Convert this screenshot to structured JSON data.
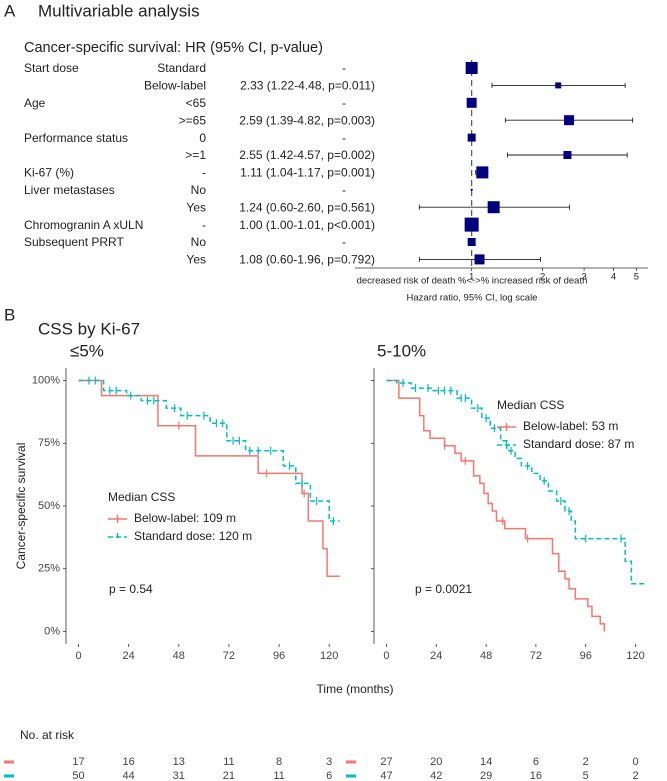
{
  "chart_data": [
    {
      "type": "forest",
      "panel_label": "A",
      "title": "Multivariable analysis",
      "subtitle": "Cancer-specific survival: HR (95% CI, p-value)",
      "rows": [
        {
          "variable": "Start dose",
          "level": "Standard",
          "estimate": "-",
          "hr": 1,
          "size": 6
        },
        {
          "level": "Below-label",
          "estimate": "2.33 (1.22-4.48, p=0.011)",
          "hr": 2.33,
          "lower": 1.22,
          "upper": 4.48,
          "size": 3
        },
        {
          "variable": "Age",
          "level": "<65",
          "estimate": "-",
          "hr": 1,
          "size": 5
        },
        {
          "level": ">=65",
          "estimate": "2.59 (1.39-4.82, p=0.003)",
          "hr": 2.59,
          "lower": 1.39,
          "upper": 4.82,
          "size": 5
        },
        {
          "variable": "Performance status",
          "level": "0",
          "estimate": "-",
          "hr": 1,
          "size": 4
        },
        {
          "level": ">=1",
          "estimate": "2.55 (1.42-4.57, p=0.002)",
          "hr": 2.55,
          "lower": 1.42,
          "upper": 4.57,
          "size": 4
        },
        {
          "variable": "Ki-67 (%)",
          "level": "-",
          "estimate": "1.11 (1.04-1.17, p=0.001)",
          "hr": 1.11,
          "lower": 1.04,
          "upper": 1.17,
          "size": 6
        },
        {
          "variable": "Liver metastases",
          "level": "No",
          "estimate": "-",
          "hr": 1,
          "size": 1
        },
        {
          "level": "Yes",
          "estimate": "1.24 (0.60-2.60, p=0.561)",
          "hr": 1.24,
          "lower": 0.6,
          "upper": 2.6,
          "size": 6
        },
        {
          "variable": "Chromogranin A xULN",
          "level": "-",
          "estimate": "1.00 (1.00-1.01, p<0.001)",
          "hr": 1.0,
          "lower": 1.0,
          "upper": 1.01,
          "size": 7
        },
        {
          "variable": "Subsequent PRRT",
          "level": "No",
          "estimate": "-",
          "hr": 1,
          "size": 4
        },
        {
          "level": "Yes",
          "estimate": "1.08 (0.60-1.96, p=0.792)",
          "hr": 1.08,
          "lower": 0.6,
          "upper": 1.96,
          "size": 5
        }
      ],
      "xlim": [
        0.32,
        5.6
      ],
      "xticks": [
        1,
        2,
        3,
        4,
        5
      ],
      "log_scale": true,
      "reference_line": 1,
      "color": "#00007f",
      "annotation": "decreased risk of death %<->% increased risk of death",
      "xlabel": "Hazard ratio, 95% CI, log scale"
    },
    {
      "type": "km",
      "title": "≤5%",
      "xlim": [
        -6,
        129
      ],
      "xticks": [
        0,
        24,
        48,
        72,
        96,
        120
      ],
      "ylim": [
        -5,
        105
      ],
      "yticks": [
        {
          "value": 0,
          "label": "0%"
        },
        {
          "value": 25,
          "label": "25%"
        },
        {
          "value": 50,
          "label": "50%"
        },
        {
          "value": 75,
          "label": "75%"
        },
        {
          "value": 100,
          "label": "100%"
        }
      ],
      "legend_title": "Median CSS",
      "annotation": "p = 0.54",
      "series": [
        {
          "name": "Below-label: 109 m",
          "color": "#f8766d",
          "line_style": "solid",
          "x": [
            0,
            11,
            38,
            56,
            86,
            107,
            110,
            117,
            119,
            125
          ],
          "values": [
            100,
            94,
            82,
            70,
            63,
            55,
            44,
            33,
            22,
            22
          ],
          "censor": [
            48,
            90,
            108
          ],
          "at_risk": [
            17,
            16,
            13,
            11,
            8,
            3
          ]
        },
        {
          "name": "Standard dose: 120 m",
          "color": "#00bfc4",
          "line_style": "dashed",
          "x": [
            0,
            12,
            23,
            30,
            42,
            49,
            63,
            71,
            80,
            98,
            104,
            111,
            120,
            125
          ],
          "values": [
            100,
            96,
            94,
            92,
            89,
            86,
            83,
            76,
            72,
            66,
            59,
            52,
            44,
            44
          ],
          "censor": [
            5,
            8,
            15,
            18,
            25,
            33,
            36,
            46,
            52,
            60,
            66,
            69,
            74,
            77,
            82,
            86,
            92,
            101,
            107,
            114,
            122
          ],
          "at_risk": [
            50,
            44,
            31,
            21,
            11,
            6
          ]
        }
      ]
    },
    {
      "type": "km",
      "title": "5-10%",
      "xlim": [
        -6,
        126
      ],
      "xticks": [
        0,
        24,
        48,
        72,
        96,
        120
      ],
      "ylim": [
        -5,
        105
      ],
      "yticks": [
        0,
        25,
        50,
        75,
        100
      ],
      "legend_title": "Median CSS",
      "annotation": "p = 0.0021",
      "series": [
        {
          "name": "Below-label: 53 m",
          "color": "#f8766d",
          "line_style": "solid",
          "x": [
            0,
            6,
            16,
            18,
            21,
            28,
            33,
            36,
            42,
            45,
            47,
            49,
            51,
            53,
            57,
            67,
            80,
            83,
            86,
            88,
            91,
            97,
            99,
            103,
            105
          ],
          "values": [
            100,
            93,
            86,
            80,
            77,
            74,
            71,
            68,
            62,
            59,
            55,
            51,
            48,
            44,
            41,
            37,
            31,
            24,
            21,
            17,
            13,
            10,
            6,
            3,
            0
          ],
          "censor": [
            28,
            38,
            56,
            68
          ],
          "at_risk": [
            27,
            20,
            14,
            6,
            2,
            0
          ]
        },
        {
          "name": "Standard dose: 87 m",
          "color": "#00bfc4",
          "line_style": "dashed",
          "x": [
            0,
            5,
            12,
            22,
            34,
            41,
            46,
            50,
            55,
            58,
            62,
            65,
            70,
            74,
            78,
            82,
            86,
            89,
            91,
            114,
            115,
            118,
            125
          ],
          "values": [
            100,
            99,
            97,
            96,
            93,
            89,
            85,
            81,
            76,
            72,
            69,
            66,
            63,
            60,
            56,
            52,
            48,
            44,
            37,
            37,
            28,
            19,
            19
          ],
          "censor": [
            8,
            14,
            20,
            25,
            28,
            31,
            36,
            38,
            44,
            48,
            52,
            60,
            68,
            76,
            84,
            88,
            96,
            113
          ],
          "at_risk": [
            47,
            42,
            29,
            16,
            5,
            2
          ]
        }
      ]
    }
  ],
  "panel_b": {
    "label": "B",
    "title": "CSS by Ki-67",
    "ylabel": "Cancer-specific survival",
    "xlabel": "Time (months)",
    "risk_table_title": "No. at risk"
  }
}
